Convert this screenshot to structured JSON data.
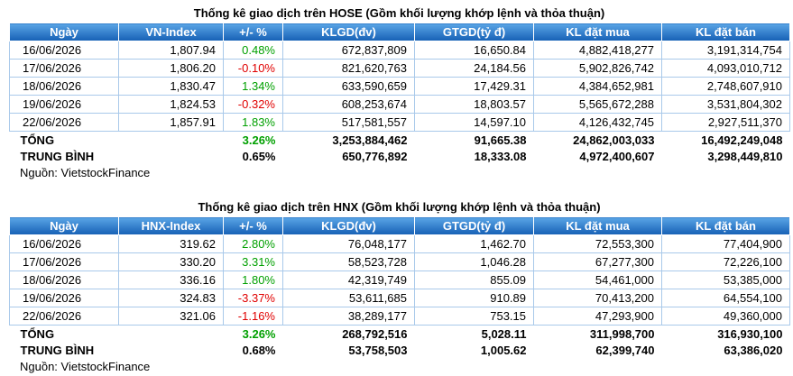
{
  "tables": [
    {
      "title": "Thống kê giao dịch trên HOSE (Gồm khối lượng khớp lệnh và thỏa thuận)",
      "headers": [
        "Ngày",
        "VN-Index",
        "+/- %",
        "KLGD(đv)",
        "GTGD(tỷ đ)",
        "KL đặt mua",
        "KL đặt bán"
      ],
      "rows": [
        [
          "16/06/2026",
          "1,807.94",
          "0.48%",
          "672,837,809",
          "16,650.84",
          "4,882,418,277",
          "3,191,314,754"
        ],
        [
          "17/06/2026",
          "1,806.20",
          "-0.10%",
          "821,620,763",
          "24,184.56",
          "5,902,826,742",
          "4,093,010,712"
        ],
        [
          "18/06/2026",
          "1,830.47",
          "1.34%",
          "633,590,659",
          "17,429.31",
          "4,384,652,981",
          "2,748,607,910"
        ],
        [
          "19/06/2026",
          "1,824.53",
          "-0.32%",
          "608,253,674",
          "18,803.57",
          "5,565,672,288",
          "3,531,804,302"
        ],
        [
          "22/06/2026",
          "1,857.91",
          "1.83%",
          "517,581,557",
          "14,597.10",
          "4,126,432,745",
          "2,927,511,370"
        ]
      ],
      "total": [
        "TỔNG",
        "3.26%",
        "3,253,884,462",
        "91,665.38",
        "24,862,003,033",
        "16,492,249,048"
      ],
      "average": [
        "TRUNG BÌNH",
        "0.65%",
        "650,776,892",
        "18,333.08",
        "4,972,400,607",
        "3,298,449,810"
      ],
      "source": "Nguồn: VietstockFinance"
    },
    {
      "title": "Thống kê giao dịch trên HNX (Gồm khối lượng khớp lệnh và thỏa thuận)",
      "headers": [
        "Ngày",
        "HNX-Index",
        "+/- %",
        "KLGD(đv)",
        "GTGD(tỷ đ)",
        "KL đặt mua",
        "KL đặt bán"
      ],
      "rows": [
        [
          "16/06/2026",
          "319.62",
          "2.80%",
          "76,048,177",
          "1,462.70",
          "72,553,300",
          "77,404,900"
        ],
        [
          "17/06/2026",
          "330.20",
          "3.31%",
          "58,523,728",
          "1,046.28",
          "67,277,300",
          "72,226,100"
        ],
        [
          "18/06/2026",
          "336.16",
          "1.80%",
          "42,319,749",
          "855.09",
          "54,461,000",
          "53,385,000"
        ],
        [
          "19/06/2026",
          "324.83",
          "-3.37%",
          "53,611,685",
          "910.89",
          "70,413,200",
          "64,554,100"
        ],
        [
          "22/06/2026",
          "321.06",
          "-1.16%",
          "38,289,177",
          "753.15",
          "47,293,900",
          "49,360,000"
        ]
      ],
      "total": [
        "TỔNG",
        "3.26%",
        "268,792,516",
        "5,028.11",
        "311,998,700",
        "316,930,100"
      ],
      "average": [
        "TRUNG BÌNH",
        "0.68%",
        "53,758,503",
        "1,005.62",
        "62,399,740",
        "63,386,020"
      ],
      "source": "Nguồn: VietstockFinance"
    }
  ]
}
